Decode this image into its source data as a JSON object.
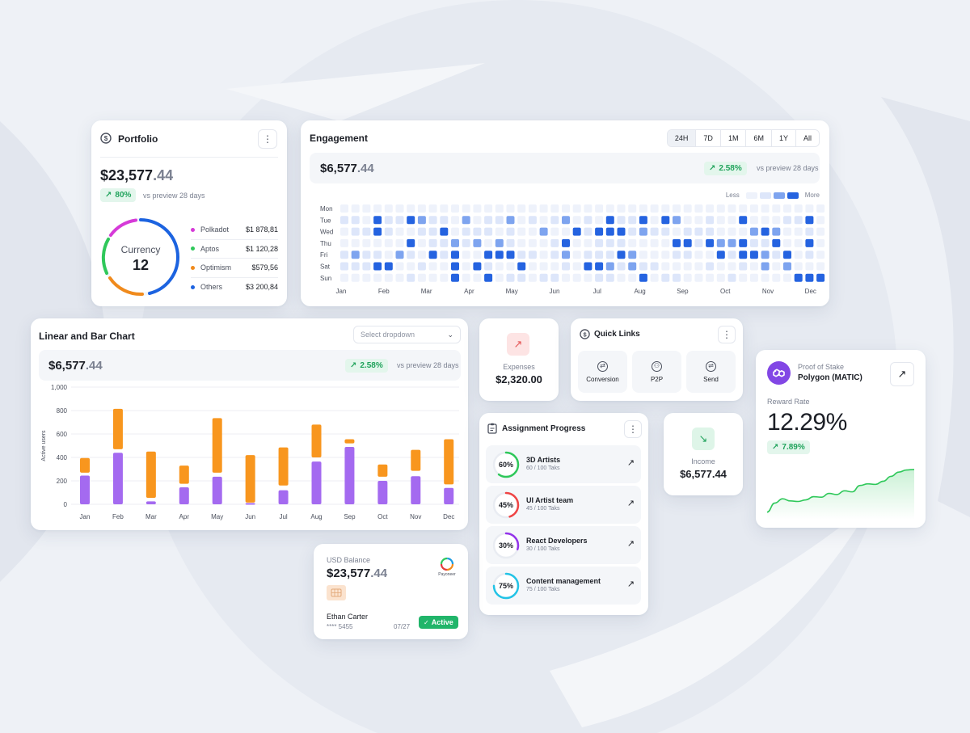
{
  "portfolio": {
    "title": "Portfolio",
    "menu_icon": "⋮",
    "amount_int": "$23,577",
    "amount_dec": ".44",
    "change": "80%",
    "vs_text": "vs preview 28 days",
    "donut_label": "Currency",
    "donut_value": "12",
    "assets": [
      {
        "name": "Polkadot",
        "value": "$1 878,81",
        "color": "#d63ad8"
      },
      {
        "name": "Aptos",
        "value": "$1 120,28",
        "color": "#2fc85a"
      },
      {
        "name": "Optimism",
        "value": "$579,56",
        "color": "#f08a1c"
      },
      {
        "name": "Others",
        "value": "$3 200,84",
        "color": "#1c63e0"
      }
    ]
  },
  "engagement": {
    "title": "Engagement",
    "ranges": [
      "24H",
      "7D",
      "1M",
      "6M",
      "1Y",
      "All"
    ],
    "active_range": "24H",
    "amount_int": "$6,577",
    "amount_dec": ".44",
    "change": "2.58%",
    "vs_text": "vs preview 28 days",
    "legend_less": "Less",
    "legend_more": "More",
    "days": [
      "Mon",
      "Tue",
      "Wed",
      "Thu",
      "Fri",
      "Sat",
      "Sun"
    ],
    "months": [
      "Jan",
      "Feb",
      "Mar",
      "Apr",
      "May",
      "Jun",
      "Jul",
      "Aug",
      "Sep",
      "Oct",
      "Nov",
      "Dec"
    ],
    "colors": [
      "#eef2fb",
      "#dde6fa",
      "#7ea4ef",
      "#2563e0"
    ]
  },
  "linear_bar": {
    "title": "Linear and Bar Chart",
    "dropdown_placeholder": "Select dropdown",
    "amount_int": "$6,577",
    "amount_dec": ".44",
    "change": "2.58%",
    "vs_text": "vs preview 28 days"
  },
  "chart_data": {
    "type": "bar",
    "ylabel": "Active users",
    "ylim": [
      0,
      1000
    ],
    "yticks": [
      "0",
      "200",
      "400",
      "600",
      "800",
      "1,000"
    ],
    "categories": [
      "Jan",
      "Feb",
      "Mar",
      "Apr",
      "May",
      "Jun",
      "Jul",
      "Aug",
      "Sep",
      "Oct",
      "Nov",
      "Dec"
    ],
    "series": [
      {
        "color": "#a46af0",
        "low": [
          0,
          0,
          0,
          0,
          0,
          0,
          0,
          0,
          0,
          0,
          0,
          0
        ],
        "high": [
          245,
          440,
          25,
          145,
          235,
          10,
          120,
          365,
          490,
          200,
          240,
          140
        ]
      },
      {
        "color": "#f8961e",
        "low": [
          270,
          470,
          55,
          175,
          270,
          15,
          160,
          400,
          520,
          235,
          285,
          170
        ],
        "high": [
          395,
          815,
          450,
          330,
          735,
          420,
          485,
          680,
          555,
          340,
          465,
          555
        ]
      }
    ]
  },
  "expenses": {
    "label": "Expenses",
    "value": "$2,320.00"
  },
  "quick_links": {
    "title": "Quick Links",
    "items": [
      {
        "label": "Conversion",
        "icon": "conversion-icon"
      },
      {
        "label": "P2P",
        "icon": "p2p-icon"
      },
      {
        "label": "Send",
        "icon": "send-icon"
      }
    ]
  },
  "assignment": {
    "title": "Assignment Progress",
    "items": [
      {
        "percent": "60%",
        "value": 0.6,
        "name": "3D Artists",
        "tasks": "60 / 100 Taks",
        "color": "#2fc85a"
      },
      {
        "percent": "45%",
        "value": 0.45,
        "name": "UI Artist team",
        "tasks": "45 / 100 Taks",
        "color": "#ef4444"
      },
      {
        "percent": "30%",
        "value": 0.3,
        "name": "React Developers",
        "tasks": "30 / 100 Taks",
        "color": "#9333ea"
      },
      {
        "percent": "75%",
        "value": 0.75,
        "name": "Content management",
        "tasks": "75 / 100 Taks",
        "color": "#22c3e6"
      }
    ]
  },
  "income": {
    "label": "Income",
    "value": "$6,577.44"
  },
  "stake": {
    "label": "Proof of Stake",
    "name": "Polygon (MATIC)",
    "reward_label": "Reward Rate",
    "reward_value": "12.29%",
    "change": "7.89%",
    "trend": [
      0.05,
      0.22,
      0.3,
      0.26,
      0.25,
      0.28,
      0.34,
      0.33,
      0.4,
      0.38,
      0.45,
      0.43,
      0.55,
      0.58,
      0.57,
      0.63,
      0.72,
      0.8,
      0.84,
      0.85
    ]
  },
  "balance": {
    "label": "USD Balance",
    "amount_int": "$23,577",
    "amount_dec": ".44",
    "brand": "Payoneer",
    "holder": "Ethan Carter",
    "card_number": "**** 5455",
    "expiry": "07/27",
    "status": "Active"
  }
}
